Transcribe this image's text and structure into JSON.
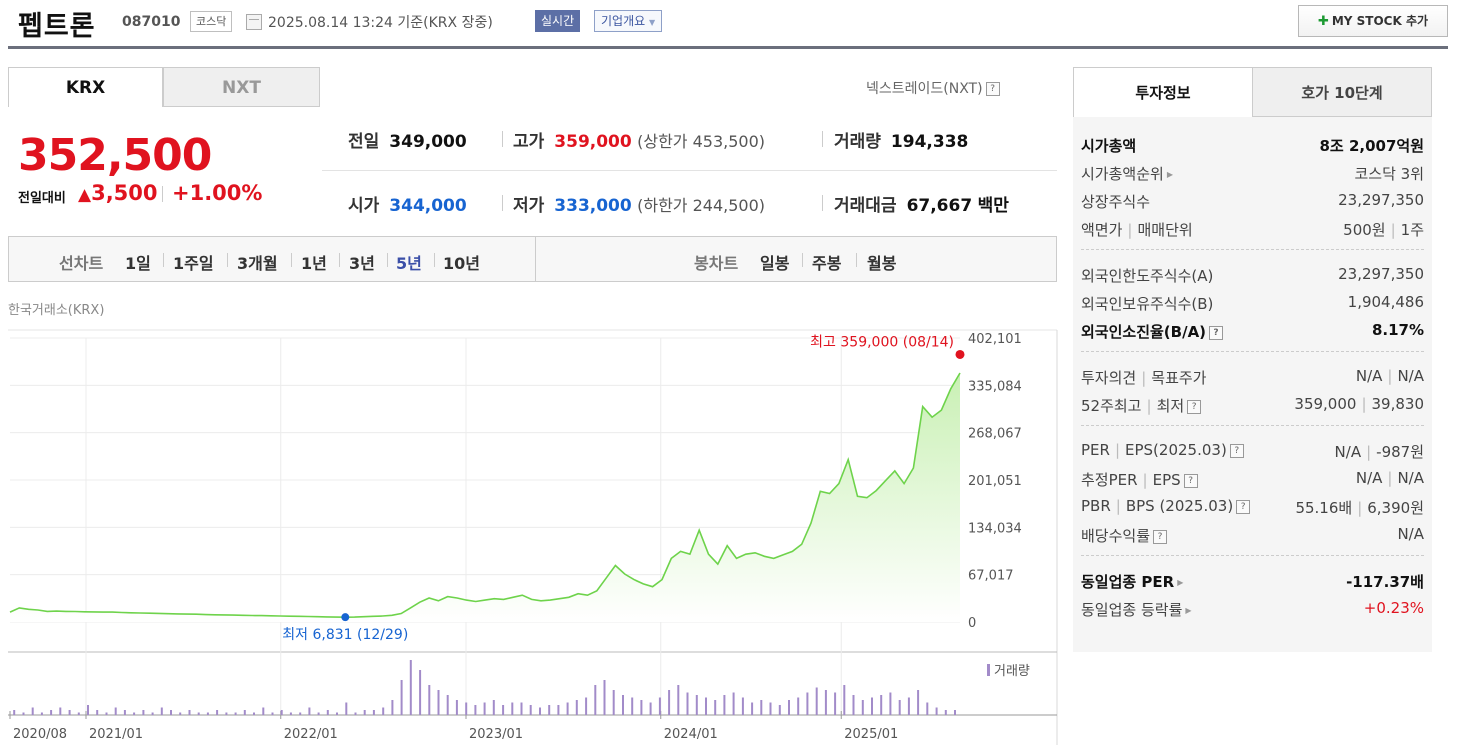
{
  "header": {
    "stock_name": "펩트론",
    "stock_code": "087010",
    "market_badge": "코스닥",
    "as_of": "2025.08.14 13:24 기준(KRX 장중)",
    "realtime_label": "실시간",
    "company_info_label": "기업개요",
    "my_stock_label": "MY STOCK 추가"
  },
  "exchange_tabs": [
    "KRX",
    "NXT"
  ],
  "nextrade_link": "넥스트레이드(NXT)",
  "help_glyph": "?",
  "quote": {
    "price": "352,500",
    "change_label": "전일대비",
    "change_arrow": "▲",
    "change_amount": "3,500",
    "change_pct": "+1.00%",
    "prev_close_label": "전일",
    "prev_close": "349,000",
    "high_label": "고가",
    "high": "359,000",
    "upper_limit": "(상한가 453,500)",
    "volume_label": "거래량",
    "volume": "194,338",
    "open_label": "시가",
    "open": "344,000",
    "low_label": "저가",
    "low": "333,000",
    "lower_limit": "(하한가 244,500)",
    "turnover_label": "거래대금",
    "turnover": "67,667",
    "turnover_unit": "백만"
  },
  "toolbar": {
    "line_chart_label": "선차트",
    "periods": [
      "1일",
      "1주일",
      "3개월",
      "1년",
      "3년",
      "5년",
      "10년"
    ],
    "selected_period": "5년",
    "candle_label": "봉차트",
    "candles": [
      "일봉",
      "주봉",
      "월봉"
    ]
  },
  "chart_source": "한국거래소(KRX)",
  "chart_data": {
    "type": "area",
    "y_ticks": [
      "402,101",
      "335,084",
      "268,067",
      "201,051",
      "134,034",
      "67,017",
      "0"
    ],
    "ylim": [
      0,
      402101
    ],
    "x_ticks": [
      "2020/08",
      "2021/01",
      "2022/01",
      "2023/01",
      "2024/01",
      "2025/01"
    ],
    "max_annotation": "최고 359,000 (08/14)",
    "min_annotation": "최저 6,831 (12/29)",
    "volume_legend": "거래량",
    "colors": {
      "line": "#6ed34b",
      "fill_top": "#c9f0b4",
      "max": "#e0131f",
      "min": "#1764d1",
      "volume": "#a28bc9"
    },
    "series": [
      {
        "values": [
          14000,
          20000,
          18000,
          17000,
          15000,
          15500,
          15000,
          14800,
          14500,
          14300,
          14000,
          14000,
          13500,
          13000,
          12800,
          12500,
          12200,
          11800,
          11500,
          11200,
          11000,
          10500,
          10200,
          10000,
          9800,
          9500,
          9200,
          9000,
          8800,
          8500,
          8200,
          8000,
          7800,
          7500,
          7200,
          7000,
          6831,
          7000,
          7500,
          8000,
          8500,
          9500,
          12000,
          20000,
          28000,
          34000,
          30000,
          36000,
          34000,
          31000,
          29000,
          31000,
          33000,
          32000,
          35000,
          38000,
          32000,
          30000,
          31000,
          33000,
          35000,
          40000,
          38000,
          44000,
          62000,
          80000,
          68000,
          60000,
          54000,
          50000,
          60000,
          90000,
          100000,
          96000,
          130000,
          96000,
          82000,
          108000,
          90000,
          96000,
          98000,
          93000,
          90000,
          95000,
          100000,
          110000,
          140000,
          185000,
          182000,
          196000,
          230000,
          178000,
          176000,
          186000,
          200000,
          214000,
          196000,
          218000,
          305000,
          290000,
          300000,
          330000,
          352500
        ]
      }
    ],
    "volume_values": [
      2,
      1,
      3,
      1,
      2,
      3,
      2,
      1,
      4,
      2,
      1,
      3,
      2,
      1,
      2,
      1,
      3,
      2,
      1,
      2,
      1,
      1,
      2,
      1,
      1,
      2,
      1,
      3,
      1,
      2,
      1,
      1,
      3,
      1,
      2,
      1,
      5,
      1,
      2,
      2,
      3,
      6,
      14,
      22,
      18,
      12,
      10,
      8,
      6,
      5,
      4,
      5,
      6,
      4,
      5,
      5,
      4,
      3,
      4,
      4,
      5,
      6,
      7,
      12,
      14,
      10,
      8,
      7,
      6,
      5,
      7,
      10,
      12,
      9,
      8,
      7,
      6,
      8,
      9,
      7,
      5,
      6,
      5,
      4,
      6,
      7,
      9,
      11,
      10,
      9,
      12,
      8,
      6,
      7,
      8,
      9,
      6,
      7,
      10,
      5,
      3,
      2,
      2
    ]
  },
  "right_panel": {
    "tabs": [
      "투자정보",
      "호가 10단계"
    ],
    "groups": [
      [
        {
          "label": "시가총액",
          "value": "8조 2,007억원",
          "bold": true
        },
        {
          "label": "시가총액순위",
          "arrow": true,
          "value": "코스닥 3위"
        },
        {
          "label": "상장주식수",
          "value": "23,297,350"
        },
        {
          "label": "액면가",
          "label2": "매매단위",
          "value": "500원",
          "value2": "1주"
        }
      ],
      [
        {
          "label": "외국인한도주식수(A)",
          "value": "23,297,350"
        },
        {
          "label": "외국인보유주식수(B)",
          "value": "1,904,486"
        },
        {
          "label": "외국인소진율(B/A)",
          "help": true,
          "value": "8.17%",
          "bold": true
        }
      ],
      [
        {
          "label": "투자의견",
          "label2": "목표주가",
          "value": "N/A",
          "value2": "N/A"
        },
        {
          "label": "52주최고",
          "label2": "최저",
          "help": true,
          "value": "359,000",
          "value2": "39,830"
        }
      ],
      [
        {
          "label": "PER",
          "label2": "EPS(2025.03)",
          "help": true,
          "value": "N/A",
          "value2": "-987원"
        },
        {
          "label": "추정PER",
          "label2": "EPS",
          "help": true,
          "value": "N/A",
          "value2": "N/A"
        },
        {
          "label": "PBR",
          "label2": "BPS (2025.03)",
          "help": true,
          "value": "55.16배",
          "value2": "6,390원"
        },
        {
          "label": "배당수익률",
          "help": true,
          "value": "N/A"
        }
      ],
      [
        {
          "label": "동일업종 PER",
          "arrow": true,
          "value": "-117.37배",
          "bold": true
        },
        {
          "label": "동일업종 등락률",
          "arrow": true,
          "value": "+0.23%",
          "red": true
        }
      ]
    ]
  }
}
